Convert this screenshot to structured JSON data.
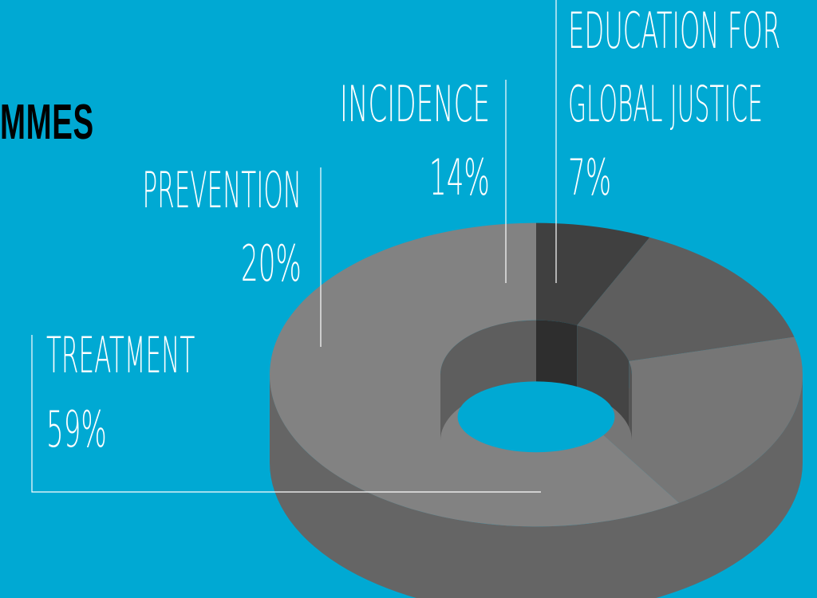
{
  "title": "MMES",
  "chart_data": {
    "type": "pie",
    "style": "3d-donut",
    "colors": {
      "background": "#00a9d3",
      "slice_dark": "#404040",
      "slice_mid": "#5e5e5e",
      "slice_light": "#767676",
      "slice_main": "#828282",
      "leader_line": "#ffffff"
    },
    "slices": [
      {
        "label": "EDUCATION FOR GLOBAL JUSTICE",
        "line1": "EDUCATION FOR",
        "line2": "GLOBAL JUSTICE",
        "value": 7,
        "value_label": "7%"
      },
      {
        "label": "INCIDENCE",
        "value": 14,
        "value_label": "14%"
      },
      {
        "label": "PREVENTION",
        "value": 20,
        "value_label": "20%"
      },
      {
        "label": "TREATMENT",
        "value": 59,
        "value_label": "59%"
      }
    ]
  }
}
